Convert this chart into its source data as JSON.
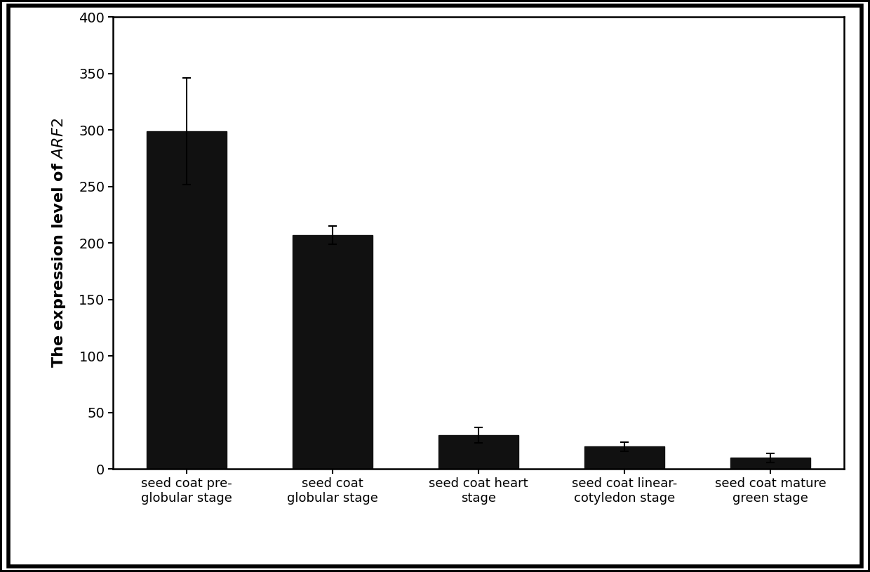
{
  "categories": [
    "seed coat pre-\nglobular stage",
    "seed coat\nglobular stage",
    "seed coat heart\nstage",
    "seed coat linear-\ncotyledon stage",
    "seed coat mature\ngreen stage"
  ],
  "values": [
    299,
    207,
    30,
    20,
    10
  ],
  "errors": [
    47,
    8,
    7,
    4,
    4
  ],
  "bar_color": "#111111",
  "ylabel": "The expression level of $\\mathit{ARF2}$",
  "ylim": [
    0,
    400
  ],
  "yticks": [
    0,
    50,
    100,
    150,
    200,
    250,
    300,
    350,
    400
  ],
  "bar_width": 0.55,
  "figure_bg": "#ffffff",
  "axes_bg": "#ffffff",
  "tick_fontsize": 14,
  "ylabel_fontsize": 16,
  "xtick_fontsize": 13
}
